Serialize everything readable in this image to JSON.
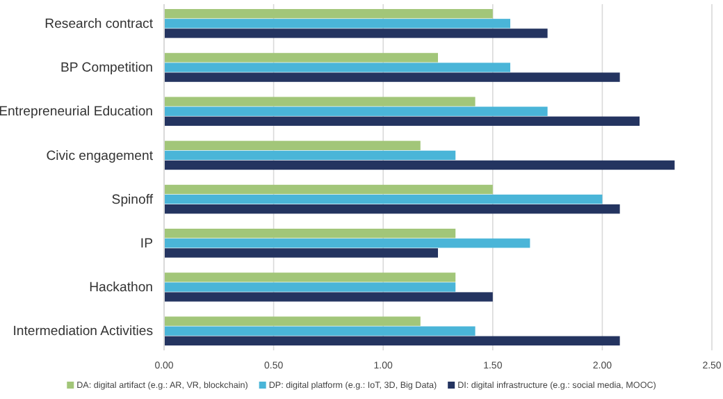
{
  "chart_data": {
    "type": "bar",
    "orientation": "horizontal",
    "categories": [
      "Research contract",
      "BP Competition",
      "Entrepreneurial Education",
      "Civic engagement",
      "Spinoff",
      "IP",
      "Hackathon",
      "Intermediation Activities"
    ],
    "series": [
      {
        "name": "DA: digital artifact (e.g.: AR, VR, blockchain)",
        "color": "#a2c679",
        "values": [
          1.5,
          1.25,
          1.42,
          1.17,
          1.5,
          1.33,
          1.33,
          1.17
        ]
      },
      {
        "name": "DP: digital platform (e.g.: IoT, 3D, Big Data)",
        "color": "#4ab5d8",
        "values": [
          1.58,
          1.58,
          1.75,
          1.33,
          2.0,
          1.67,
          1.33,
          1.42
        ]
      },
      {
        "name": "DI: digital infrastructure (e.g.: social media, MOOC)",
        "color": "#243460",
        "values": [
          1.75,
          2.08,
          2.17,
          2.33,
          2.08,
          1.25,
          1.5,
          2.08
        ]
      }
    ],
    "xlim": [
      0,
      2.5
    ],
    "xticks": [
      {
        "value": 0,
        "label": "0.00"
      },
      {
        "value": 0.5,
        "label": "0.50"
      },
      {
        "value": 1,
        "label": "1.00"
      },
      {
        "value": 1.5,
        "label": "1.50"
      },
      {
        "value": 2,
        "label": "2.00"
      },
      {
        "value": 2.5,
        "label": "2.50"
      }
    ],
    "grid": "x",
    "legend": "bottom"
  }
}
